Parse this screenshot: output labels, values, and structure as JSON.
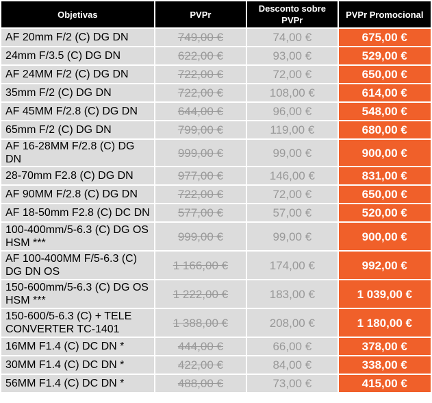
{
  "headers": {
    "lens": "Objetivas",
    "pvpr": "PVPr",
    "discount": "Desconto sobre PVPr",
    "promo": "PVPr Promocional"
  },
  "rows": [
    {
      "lens": "AF 20mm F/2 (C) DG DN",
      "pvpr": "749,00 €",
      "discount": "74,00 €",
      "promo": "675,00 €"
    },
    {
      "lens": "24mm F/3.5 (C) DG DN",
      "pvpr": "622,00 €",
      "discount": "93,00 €",
      "promo": "529,00 €"
    },
    {
      "lens": "AF 24MM F/2 (C) DG DN",
      "pvpr": "722,00 €",
      "discount": "72,00 €",
      "promo": "650,00 €"
    },
    {
      "lens": "35mm F/2 (C) DG DN",
      "pvpr": "722,00 €",
      "discount": "108,00 €",
      "promo": "614,00 €"
    },
    {
      "lens": "AF 45MM F/2.8 (C) DG DN",
      "pvpr": "644,00 €",
      "discount": "96,00 €",
      "promo": "548,00 €"
    },
    {
      "lens": "65mm F/2 (C) DG DN",
      "pvpr": "799,00 €",
      "discount": "119,00 €",
      "promo": "680,00 €"
    },
    {
      "lens": "AF 16-28MM F/2.8 (C) DG DN",
      "pvpr": "999,00 €",
      "discount": "99,00 €",
      "promo": "900,00 €"
    },
    {
      "lens": "28-70mm F2.8 (C) DG DN",
      "pvpr": "977,00 €",
      "discount": "146,00 €",
      "promo": "831,00 €"
    },
    {
      "lens": "AF 90MM F/2.8 (C) DG DN",
      "pvpr": "722,00 €",
      "discount": "72,00 €",
      "promo": "650,00 €"
    },
    {
      "lens": "AF 18-50mm F2.8 (C) DC DN",
      "pvpr": "577,00 €",
      "discount": "57,00 €",
      "promo": "520,00 €"
    },
    {
      "lens": "100-400mm/5-6.3 (C) DG OS HSM ***",
      "pvpr": "999,00 €",
      "discount": "99,00 €",
      "promo": "900,00 €"
    },
    {
      "lens": "AF 100-400MM F/5-6.3 (C) DG DN OS",
      "pvpr": "1 166,00 €",
      "discount": "174,00 €",
      "promo": "992,00 €"
    },
    {
      "lens": "150-600mm/5-6.3 (C) DG OS HSM ***",
      "pvpr": "1 222,00 €",
      "discount": "183,00 €",
      "promo": "1 039,00 €"
    },
    {
      "lens": "150-600/5-6.3 (C) + TELE CONVERTER TC-1401",
      "pvpr": "1 388,00 €",
      "discount": "208,00 €",
      "promo": "1 180,00 €"
    },
    {
      "lens": "16MM F1.4 (C) DC DN *",
      "pvpr": "444,00 €",
      "discount": "66,00 €",
      "promo": "378,00 €"
    },
    {
      "lens": "30MM F1.4 (C) DC DN *",
      "pvpr": "422,00 €",
      "discount": "84,00 €",
      "promo": "338,00 €"
    },
    {
      "lens": "56MM F1.4 (C) DC DN *",
      "pvpr": "488,00 €",
      "discount": "73,00 €",
      "promo": "415,00 €"
    }
  ]
}
